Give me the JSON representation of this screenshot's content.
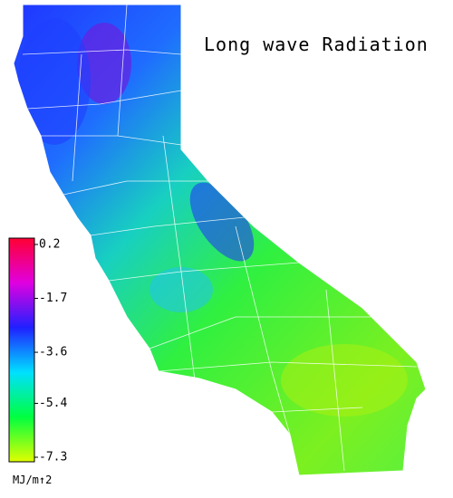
{
  "title": "Long wave Radiation",
  "colorbar": {
    "ticks": [
      0.2,
      -1.7,
      -3.6,
      -5.4,
      -7.3
    ],
    "unit": "MJ/m↑2",
    "colors": [
      "#ff0033",
      "#e000e0",
      "#2020ff",
      "#00e0ff",
      "#00ff40",
      "#e0ff00"
    ]
  }
}
